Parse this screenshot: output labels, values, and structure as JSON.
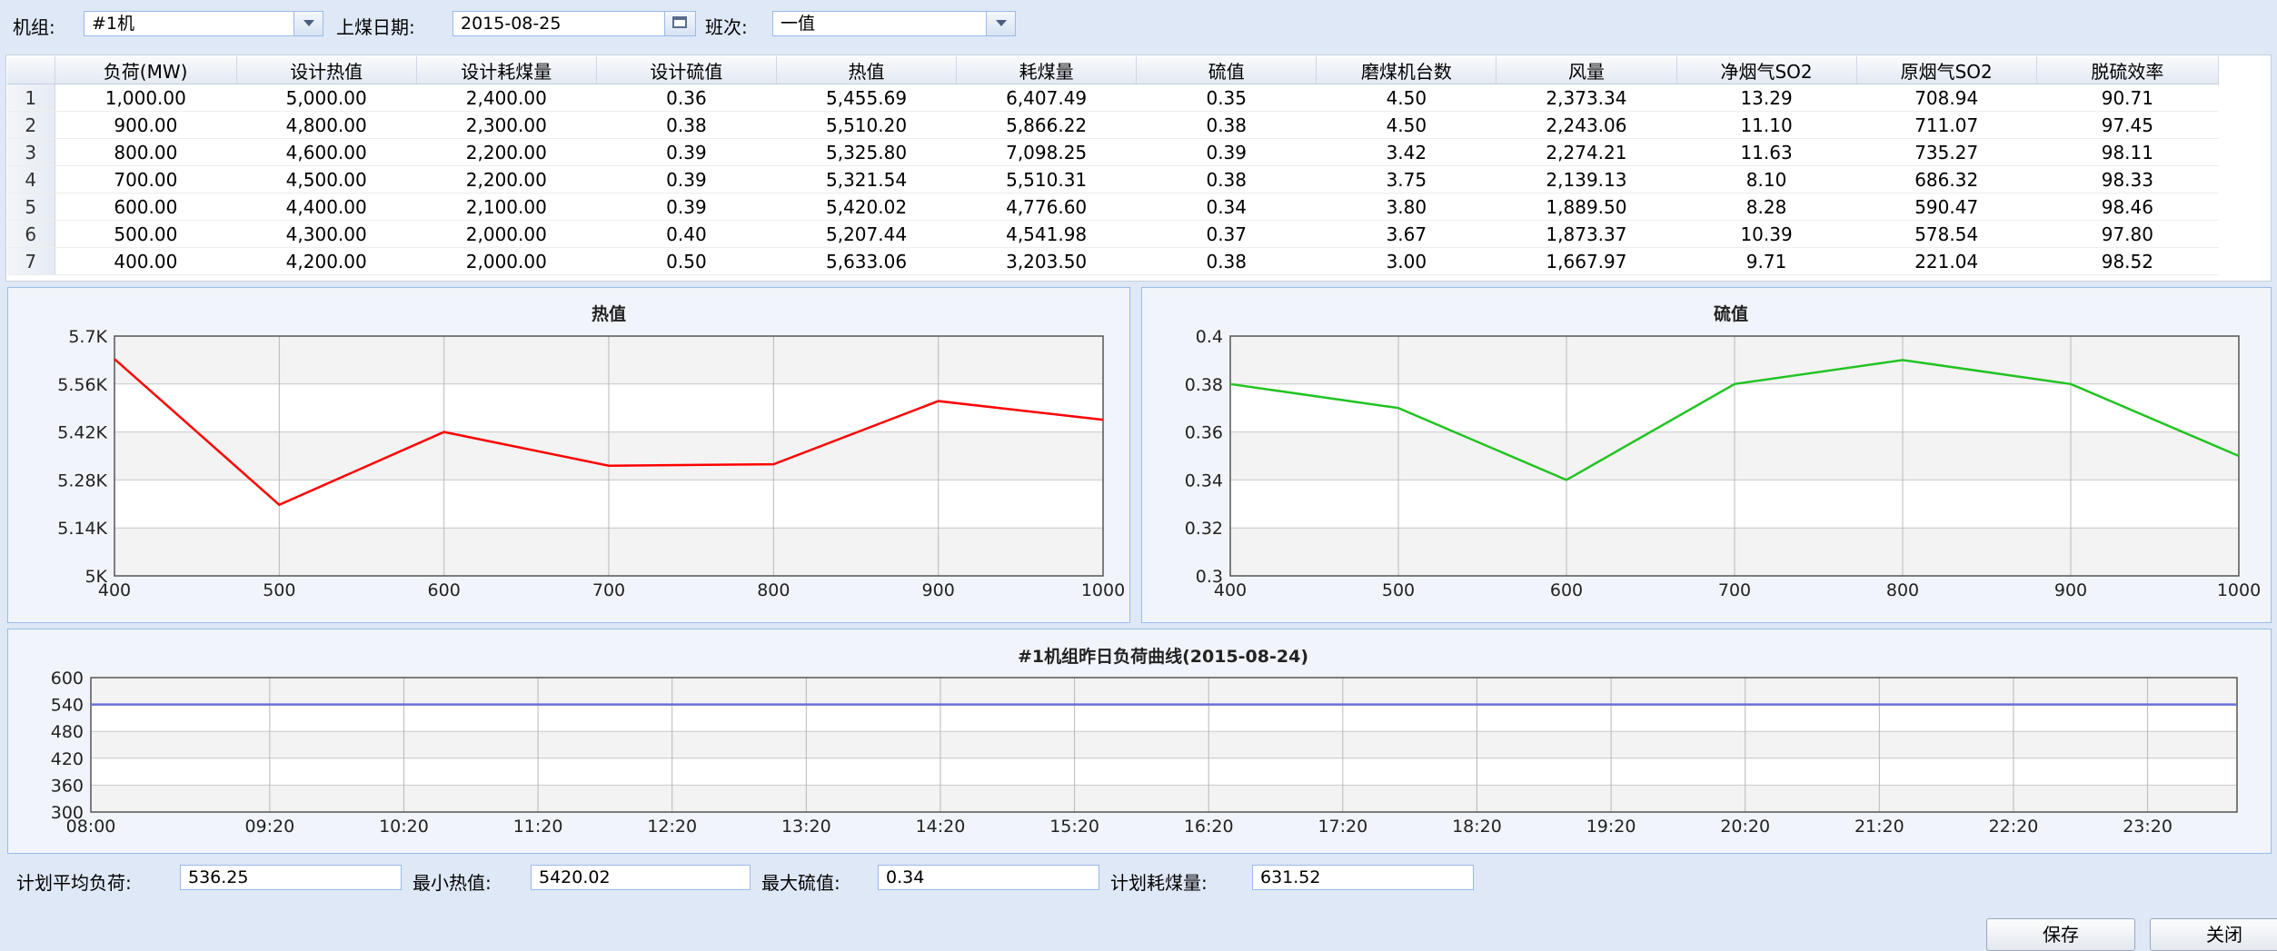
{
  "toolbar": {
    "unit_label": "机组:",
    "unit_value": "#1机",
    "date_label": "上煤日期:",
    "date_value": "2015-08-25",
    "shift_label": "班次:",
    "shift_value": "一值"
  },
  "table": {
    "columns": [
      "负荷(MW)",
      "设计热值",
      "设计耗煤量",
      "设计硫值",
      "热值",
      "耗煤量",
      "硫值",
      "磨煤机台数",
      "风量",
      "净烟气SO2",
      "原烟气SO2",
      "脱硫效率"
    ],
    "rows": [
      {
        "n": "1",
        "cells": [
          "1,000.00",
          "5,000.00",
          "2,400.00",
          "0.36",
          "5,455.69",
          "6,407.49",
          "0.35",
          "4.50",
          "2,373.34",
          "13.29",
          "708.94",
          "90.71"
        ]
      },
      {
        "n": "2",
        "cells": [
          "900.00",
          "4,800.00",
          "2,300.00",
          "0.38",
          "5,510.20",
          "5,866.22",
          "0.38",
          "4.50",
          "2,243.06",
          "11.10",
          "711.07",
          "97.45"
        ]
      },
      {
        "n": "3",
        "cells": [
          "800.00",
          "4,600.00",
          "2,200.00",
          "0.39",
          "5,325.80",
          "7,098.25",
          "0.39",
          "3.42",
          "2,274.21",
          "11.63",
          "735.27",
          "98.11"
        ]
      },
      {
        "n": "4",
        "cells": [
          "700.00",
          "4,500.00",
          "2,200.00",
          "0.39",
          "5,321.54",
          "5,510.31",
          "0.38",
          "3.75",
          "2,139.13",
          "8.10",
          "686.32",
          "98.33"
        ]
      },
      {
        "n": "5",
        "cells": [
          "600.00",
          "4,400.00",
          "2,100.00",
          "0.39",
          "5,420.02",
          "4,776.60",
          "0.34",
          "3.80",
          "1,889.50",
          "8.28",
          "590.47",
          "98.46"
        ]
      },
      {
        "n": "6",
        "cells": [
          "500.00",
          "4,300.00",
          "2,000.00",
          "0.40",
          "5,207.44",
          "4,541.98",
          "0.37",
          "3.67",
          "1,873.37",
          "10.39",
          "578.54",
          "97.80"
        ]
      },
      {
        "n": "7",
        "cells": [
          "400.00",
          "4,200.00",
          "2,000.00",
          "0.50",
          "5,633.06",
          "3,203.50",
          "0.38",
          "3.00",
          "1,667.97",
          "9.71",
          "221.04",
          "98.52"
        ]
      }
    ]
  },
  "chart_data": [
    {
      "type": "line",
      "title": "热值",
      "x": [
        400,
        500,
        600,
        700,
        800,
        900,
        1000
      ],
      "series": [
        {
          "values": [
            5633.06,
            5207.44,
            5420.02,
            5321.54,
            5325.8,
            5510.2,
            5455.69
          ],
          "color": "#ff0000"
        }
      ],
      "xlim": [
        400,
        1000
      ],
      "ylim": [
        5000,
        5700
      ],
      "x_ticks": [
        "400",
        "500",
        "600",
        "700",
        "800",
        "900",
        "1000"
      ],
      "y_ticks": [
        "5K",
        "5.14K",
        "5.28K",
        "5.42K",
        "5.56K",
        "5.7K"
      ],
      "grid": true
    },
    {
      "type": "line",
      "title": "硫值",
      "x": [
        400,
        500,
        600,
        700,
        800,
        900,
        1000
      ],
      "series": [
        {
          "values": [
            0.38,
            0.37,
            0.34,
            0.38,
            0.39,
            0.38,
            0.35
          ],
          "color": "#22c322"
        }
      ],
      "xlim": [
        400,
        1000
      ],
      "ylim": [
        0.3,
        0.4
      ],
      "x_ticks": [
        "400",
        "500",
        "600",
        "700",
        "800",
        "900",
        "1000"
      ],
      "y_ticks": [
        "0.3",
        "0.32",
        "0.34",
        "0.36",
        "0.38",
        "0.4"
      ],
      "grid": true
    },
    {
      "type": "line",
      "title": "#1机组昨日负荷曲线(2015-08-24)",
      "x": [
        "08:00",
        "23:59"
      ],
      "series": [
        {
          "values": [
            540,
            540
          ],
          "color": "#6a6fd8"
        }
      ],
      "ylim": [
        300,
        600
      ],
      "x_ticks": [
        "08:00",
        "09:20",
        "10:20",
        "11:20",
        "12:20",
        "13:20",
        "14:20",
        "15:20",
        "16:20",
        "17:20",
        "18:20",
        "19:20",
        "20:20",
        "21:20",
        "22:20",
        "23:20"
      ],
      "y_ticks": [
        "300",
        "360",
        "420",
        "480",
        "540",
        "600"
      ],
      "grid": true
    }
  ],
  "footer": {
    "avg_load_label": "计划平均负荷:",
    "avg_load_value": "536.25",
    "min_heat_label": "最小热值:",
    "min_heat_value": "5420.02",
    "max_sulfur_label": "最大硫值:",
    "max_sulfur_value": "0.34",
    "coal_label": "计划耗煤量:",
    "coal_value": "631.52",
    "save_label": "保存",
    "close_label": "关闭"
  }
}
